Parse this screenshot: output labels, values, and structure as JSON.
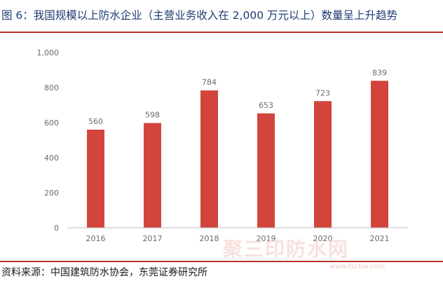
{
  "figure": {
    "title": "图 6：我国规模以上防水企业（主营业务收入在 2,000 万元以上）数量呈上升趋势",
    "source": "资料来源：中国建筑防水协会，东莞证券研究所",
    "watermark": "聚三印防水网",
    "watermark_url": "www.fscbw.com"
  },
  "colors": {
    "bar": "#d2453d",
    "title_text": "#1f3b73",
    "rule": "#b8322c",
    "axis": "#bdbdbd",
    "label": "#6b6b6b"
  },
  "chart_data": {
    "type": "bar",
    "title": "",
    "xlabel": "",
    "ylabel": "",
    "categories": [
      "2016",
      "2017",
      "2018",
      "2019",
      "2020",
      "2021"
    ],
    "values": [
      560,
      598,
      784,
      653,
      723,
      839
    ],
    "data_labels": [
      "560",
      "598",
      "784",
      "653",
      "723",
      "839"
    ],
    "ylim": [
      0,
      1000
    ],
    "yticks": [
      0,
      200,
      400,
      600,
      800,
      1000
    ],
    "ytick_labels": [
      "0",
      "200",
      "400",
      "600",
      "800",
      "1,000"
    ],
    "grid": false,
    "legend": "none"
  }
}
